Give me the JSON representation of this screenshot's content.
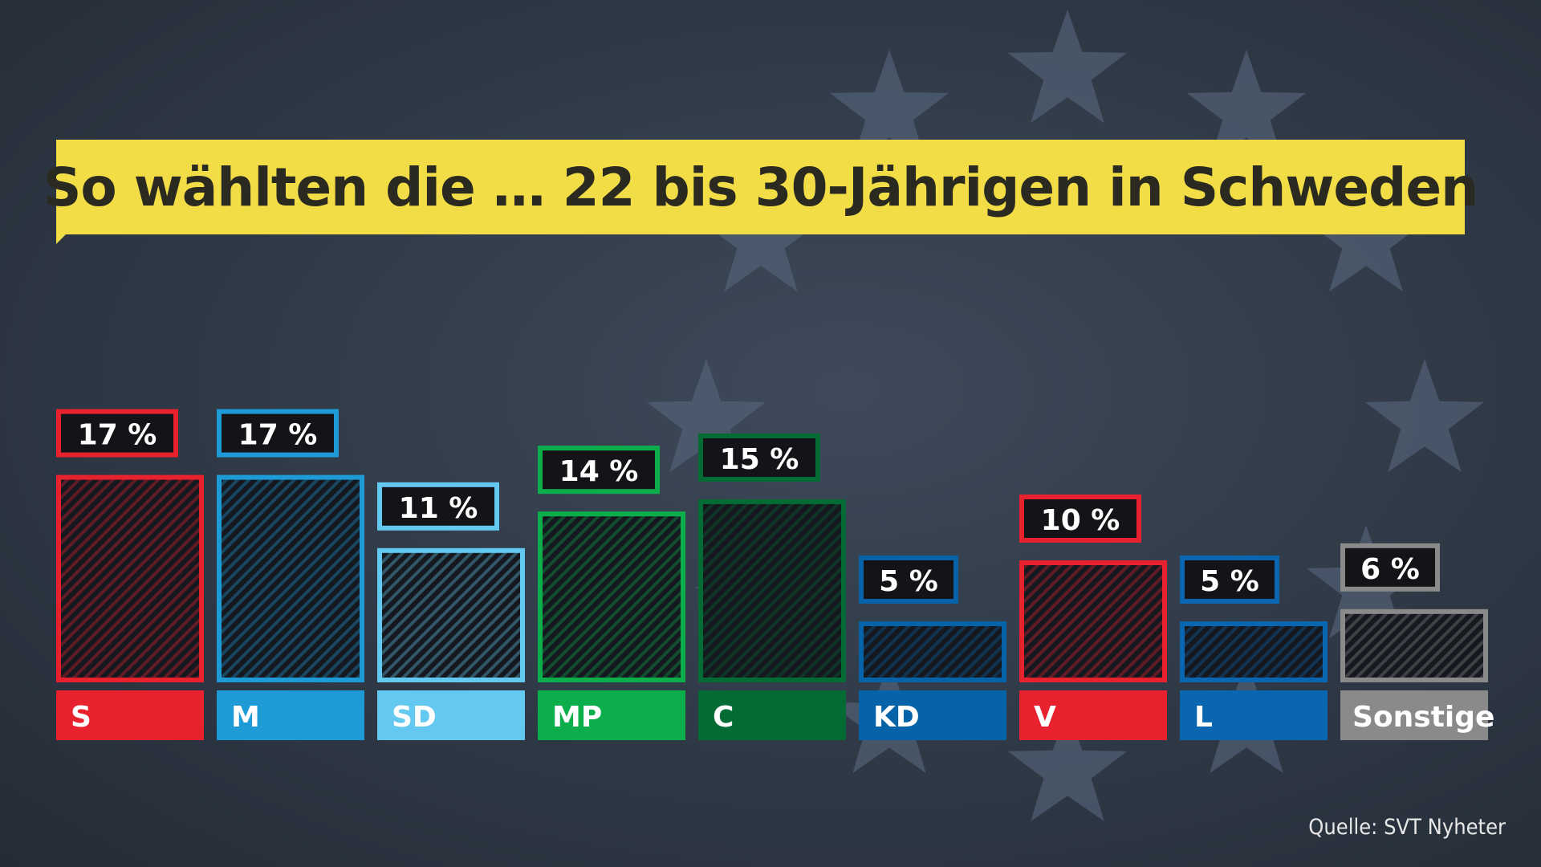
{
  "title": "So wählten die … 22 bis 30-Jährigen in Schweden",
  "source": "Quelle: SVT Nyheter",
  "colors": {
    "background": "#2f3946",
    "banner": "#f2dd47",
    "star": "#55647a",
    "value_box": "#141418"
  },
  "chart_data": {
    "type": "bar",
    "title": "So wählten die … 22 bis 30-Jährigen in Schweden",
    "xlabel": "",
    "ylabel": "",
    "ylim": [
      0,
      20
    ],
    "categories": [
      "S",
      "M",
      "SD",
      "MP",
      "C",
      "KD",
      "V",
      "L",
      "Sonstige"
    ],
    "values": [
      17,
      17,
      11,
      14,
      15,
      5,
      10,
      5,
      6
    ],
    "value_labels": [
      "17 %",
      "17 %",
      "11 %",
      "14 %",
      "15 %",
      "5 %",
      "10 %",
      "5 %",
      "6 %"
    ],
    "bar_colors": [
      "#e8212f",
      "#1e9ad6",
      "#63c9f1",
      "#0cae4c",
      "#036b33",
      "#0663a8",
      "#e8212f",
      "#0b66b2",
      "#8a8a8a"
    ]
  }
}
